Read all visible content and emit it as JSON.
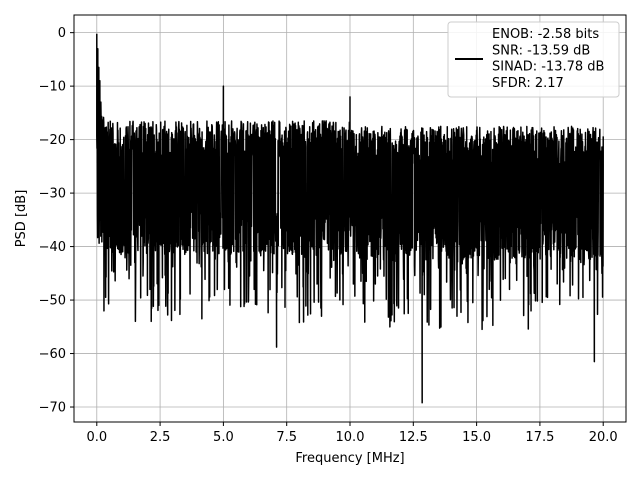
{
  "chart_data": {
    "type": "line",
    "title": "",
    "xlabel": "Frequency [MHz]",
    "ylabel": "PSD [dB]",
    "xlim": [
      -0.9,
      20.9
    ],
    "ylim": [
      -72.8,
      3.3
    ],
    "xticks": [
      0.0,
      2.5,
      5.0,
      7.5,
      10.0,
      12.5,
      15.0,
      17.5,
      20.0
    ],
    "xtick_labels": [
      "0.0",
      "2.5",
      "5.0",
      "7.5",
      "10.0",
      "12.5",
      "15.0",
      "17.5",
      "20.0"
    ],
    "yticks": [
      0,
      -10,
      -20,
      -30,
      -40,
      -50,
      -60,
      -70
    ],
    "ytick_labels": [
      "0",
      "−10",
      "−20",
      "−30",
      "−40",
      "−50",
      "−60",
      "−70"
    ],
    "grid": true,
    "legend_position": "upper-right",
    "legend": [
      "ENOB: -2.58 bits",
      "SNR: -13.59 dB",
      "SINAD: -13.78 dB",
      "SFDR: 2.17"
    ],
    "series": [
      {
        "color": "#000000",
        "points": [
          [
            0.0,
            -0.2
          ],
          [
            0.04,
            -3.0
          ],
          [
            0.08,
            -6.5
          ],
          [
            0.12,
            -9.0
          ],
          [
            0.16,
            -13.0
          ],
          [
            0.2,
            -16.5
          ],
          [
            0.26,
            -35.5
          ],
          [
            0.35,
            -49.5
          ],
          [
            0.6,
            -24.0
          ],
          [
            1.0,
            -41.0
          ],
          [
            1.5,
            -43.0
          ],
          [
            1.8,
            -38.0
          ],
          [
            2.1,
            -48.0
          ],
          [
            2.7,
            -42.5
          ],
          [
            3.3,
            -49.8
          ],
          [
            4.15,
            -53.5
          ],
          [
            4.8,
            -41.0
          ],
          [
            5.0,
            -10.0
          ],
          [
            5.5,
            -43.0
          ],
          [
            6.0,
            -46.0
          ],
          [
            7.1,
            -58.8
          ],
          [
            8.0,
            -54.2
          ],
          [
            8.7,
            -47.0
          ],
          [
            9.6,
            -50.0
          ],
          [
            10.0,
            -12.0
          ],
          [
            10.5,
            -45.0
          ],
          [
            11.0,
            -47.0
          ],
          [
            12.3,
            -52.5
          ],
          [
            12.55,
            -43.5
          ],
          [
            12.85,
            -69.2
          ],
          [
            13.5,
            -44.0
          ],
          [
            14.6,
            -45.0
          ],
          [
            15.5,
            -48.0
          ],
          [
            16.3,
            -48.0
          ],
          [
            17.0,
            -43.0
          ],
          [
            17.8,
            -49.5
          ],
          [
            18.3,
            -42.0
          ],
          [
            19.2,
            -49.5
          ],
          [
            19.65,
            -61.5
          ],
          [
            19.95,
            -45.0
          ],
          [
            20.0,
            -25.0
          ]
        ]
      }
    ]
  }
}
